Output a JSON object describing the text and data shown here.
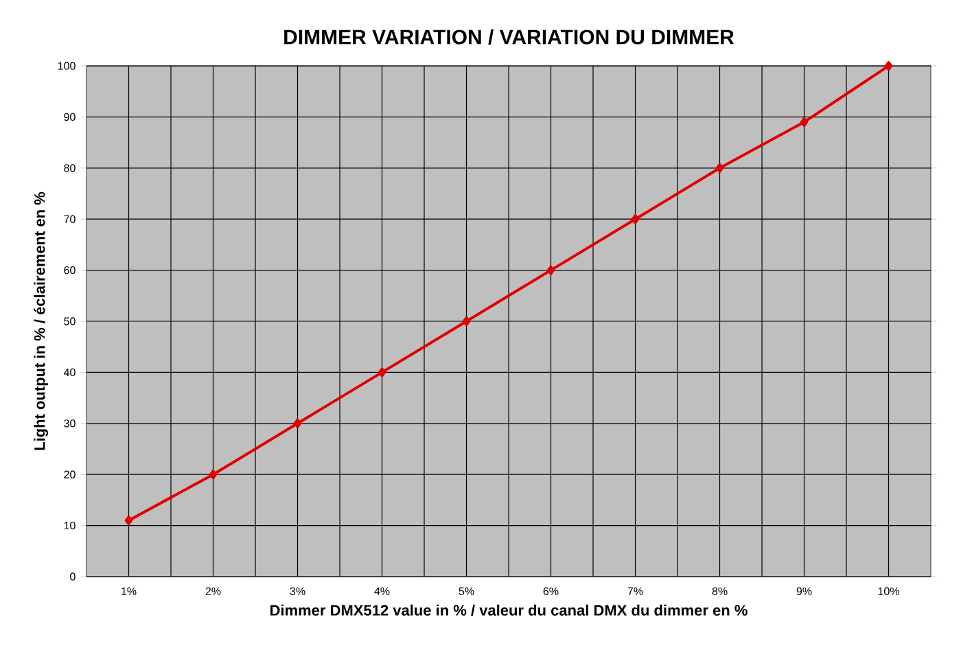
{
  "chart_data": {
    "type": "line",
    "title": "DIMMER VARIATION / VARIATION DU DIMMER",
    "xlabel": "Dimmer DMX512 value in % / valeur du canal DMX du dimmer en %",
    "ylabel": "Light output in % / éclairement en %",
    "categories": [
      "1%",
      "2%",
      "3%",
      "4%",
      "5%",
      "6%",
      "7%",
      "8%",
      "9%",
      "10%"
    ],
    "series": [
      {
        "color": "#e00000",
        "values": [
          11,
          20,
          30,
          40,
          50,
          60,
          70,
          80,
          89,
          100
        ]
      }
    ],
    "ylim": [
      0,
      100
    ],
    "yticks": [
      0,
      10,
      20,
      30,
      40,
      50,
      60,
      70,
      80,
      90,
      100
    ],
    "grid": true,
    "marker": "diamond",
    "line_style": "solid"
  }
}
